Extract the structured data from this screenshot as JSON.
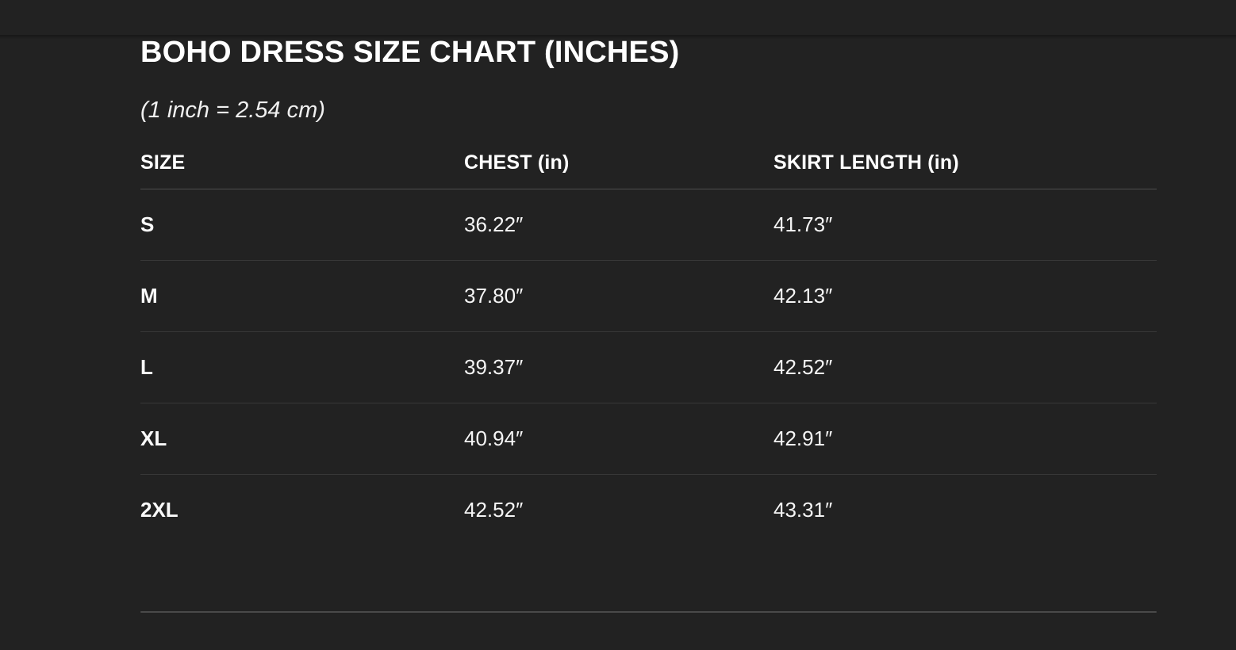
{
  "colors": {
    "background": "#222222",
    "title_text": "#ffffff",
    "body_text": "#f5f5f5",
    "header_rule": "#4f4f4f",
    "row_rule": "#383838",
    "bottom_rule": "#4a4a4a"
  },
  "size_chart": {
    "title": "BOHO DRESS SIZE CHART (INCHES)",
    "conversion_note": "(1 inch = 2.54 cm)",
    "columns": [
      "SIZE",
      "CHEST (in)",
      "SKIRT LENGTH (in)"
    ],
    "rows": [
      {
        "size": "S",
        "chest": "36.22″",
        "skirt_length": "41.73″"
      },
      {
        "size": "M",
        "chest": "37.80″",
        "skirt_length": "42.13″"
      },
      {
        "size": "L",
        "chest": "39.37″",
        "skirt_length": "42.52″"
      },
      {
        "size": "XL",
        "chest": "40.94″",
        "skirt_length": "42.91″"
      },
      {
        "size": "2XL",
        "chest": "42.52″",
        "skirt_length": "43.31″"
      }
    ]
  }
}
